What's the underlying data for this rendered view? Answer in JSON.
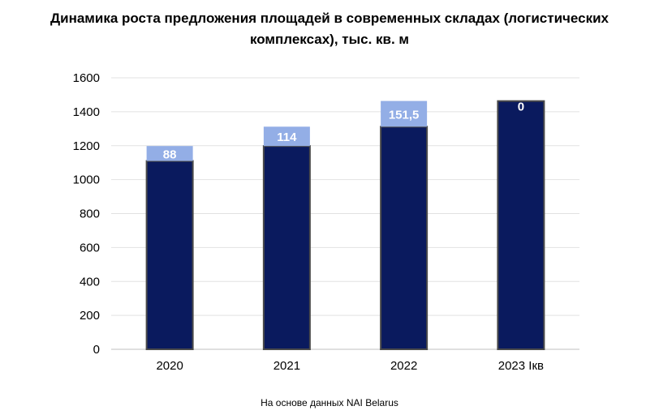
{
  "chart_data": {
    "type": "bar",
    "stacked": true,
    "title_line1": "Динамика роста предложения площадей в современных складах (логистических",
    "title_line2": "комплексах), тыс. кв. м",
    "categories": [
      "2020",
      "2021",
      "2022",
      "2023 Iкв"
    ],
    "series": [
      {
        "values": [
          1110,
          1198,
          1312,
          1463
        ],
        "color": "#0a1a5e"
      },
      {
        "values": [
          88,
          114,
          151.5,
          0
        ],
        "color": "#93aee6"
      }
    ],
    "data_labels": [
      "88",
      "114",
      "151,5",
      "0"
    ],
    "ylim": [
      0,
      1600
    ],
    "yticks": [
      "0",
      "200",
      "400",
      "600",
      "800",
      "1000",
      "1200",
      "1400",
      "1600"
    ],
    "grid": true,
    "xlabel": "",
    "ylabel": ""
  },
  "source_note": "На основе данных NAI Belarus"
}
